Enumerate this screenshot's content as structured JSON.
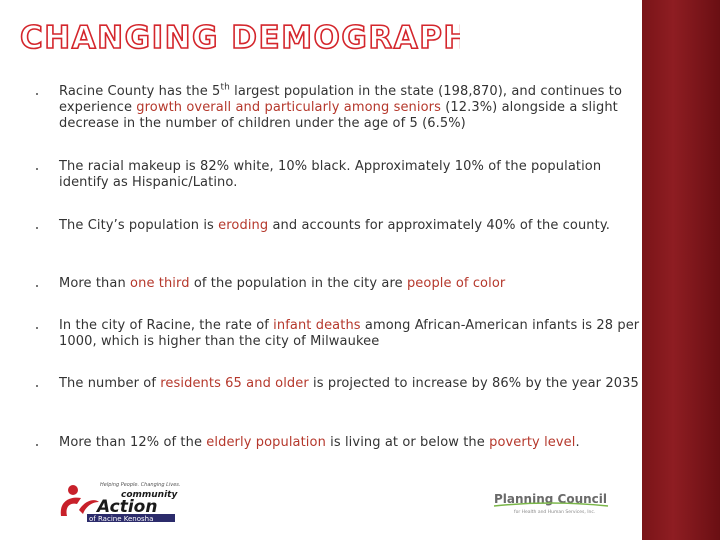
{
  "title": "CHANGING DEMOGRAPHICS",
  "bullets": [
    [
      {
        "text": "Racine County has the 5"
      },
      {
        "text": "th",
        "sup": true
      },
      {
        "text": " largest population in the state (198,870), and continues to experience "
      },
      {
        "text": "growth overall and particularly among seniors",
        "color": "#b5382c"
      },
      {
        "text": " (12.3%) alongside a slight decrease in the number of children under the age of 5 (6.5%)"
      }
    ],
    [
      {
        "text": "The racial makeup is 82% white, 10% black. Approximately 10% of the population identify as Hispanic/Latino."
      }
    ],
    [
      {
        "text": "The City’s population is "
      },
      {
        "text": "eroding",
        "color": "#b5382c"
      },
      {
        "text": " and accounts for approximately 40% of the county."
      }
    ],
    [
      {
        "text": "More than "
      },
      {
        "text": "one third",
        "color": "#b5382c"
      },
      {
        "text": " of the population in the city are "
      },
      {
        "text": "people of color",
        "color": "#b5382c"
      }
    ],
    [
      {
        "text": "In the city of Racine, the rate of "
      },
      {
        "text": "infant deaths",
        "color": "#b5382c"
      },
      {
        "text": " among African-American infants is 28 per 1000, which is higher than the city of Milwaukee"
      }
    ],
    [
      {
        "text": " The number of "
      },
      {
        "text": "residents 65 and older",
        "color": "#b5382c"
      },
      {
        "text": " is projected to increase by 86% by the year 2035"
      }
    ],
    [
      {
        "text": "More than 12% of the "
      },
      {
        "text": "elderly population",
        "color": "#b5382c"
      },
      {
        "text": " is living at or below the "
      },
      {
        "text": "poverty level",
        "color": "#b5382c"
      },
      {
        "text": "."
      }
    ]
  ],
  "logos": {
    "community_action": {
      "tagline": "Helping People. Changing Lives.",
      "name_top": "community",
      "name_main": "Action",
      "name_sub": "of Racine Kenosha"
    },
    "planning_council": {
      "name": "Planning Council",
      "tagline": "for Health and Human Services, Inc."
    }
  }
}
